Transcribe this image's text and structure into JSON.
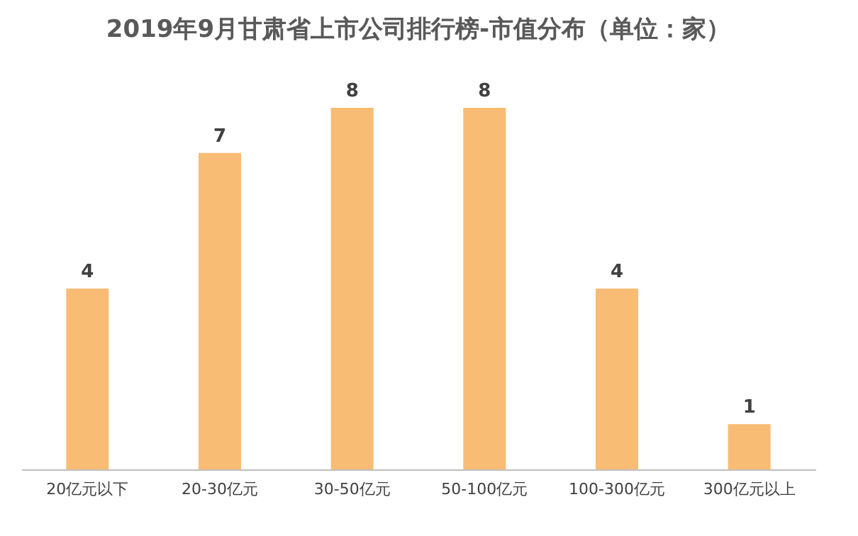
{
  "chart_data": {
    "type": "bar",
    "title": "2019年9月甘肃省上市公司排行榜-市值分布（单位：家）",
    "categories": [
      "20亿元以下",
      "20-30亿元",
      "30-50亿元",
      "50-100亿元",
      "100-300亿元",
      "300亿元以上"
    ],
    "values": [
      4,
      7,
      8,
      8,
      4,
      1
    ],
    "color": "#f8bc74",
    "data_labels": true,
    "grid": false,
    "tick_labels": "x"
  }
}
